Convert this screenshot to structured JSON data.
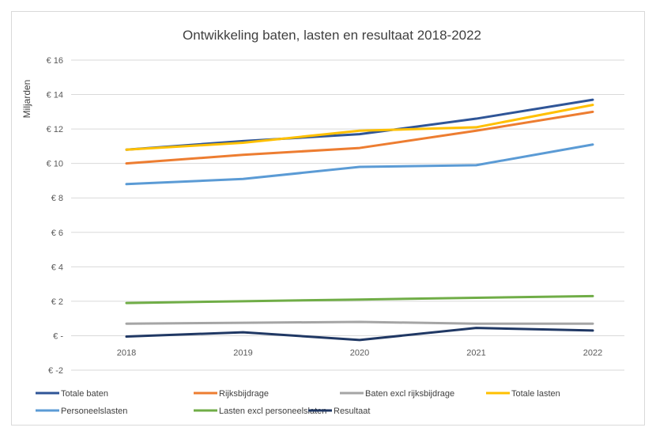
{
  "chart_data": {
    "type": "line",
    "title": "Ontwikkeling baten, lasten en resultaat 2018-2022",
    "xlabel": "",
    "ylabel": "Miljarden",
    "ylim": [
      -2,
      16
    ],
    "yticks": [
      -2,
      0,
      2,
      4,
      6,
      8,
      10,
      12,
      14,
      16
    ],
    "ytick_labels": [
      "€ -2",
      "€ -",
      "€ 2",
      "€ 4",
      "€ 6",
      "€ 8",
      "€ 10",
      "€ 12",
      "€ 14",
      "€ 16"
    ],
    "grid": true,
    "legend_position": "bottom",
    "categories": [
      "2018",
      "2019",
      "2020",
      "2021",
      "2022"
    ],
    "series": [
      {
        "name": "Totale baten",
        "color": "#2f5597",
        "values": [
          10.8,
          11.3,
          11.7,
          12.6,
          13.7
        ]
      },
      {
        "name": "Rijksbijdrage",
        "color": "#ed7d31",
        "values": [
          10.0,
          10.5,
          10.9,
          11.9,
          13.0
        ]
      },
      {
        "name": "Baten excl rijksbijdrage",
        "color": "#a5a5a5",
        "values": [
          0.7,
          0.75,
          0.8,
          0.7,
          0.7
        ]
      },
      {
        "name": "Totale lasten",
        "color": "#ffc000",
        "values": [
          10.8,
          11.2,
          11.9,
          12.1,
          13.4
        ]
      },
      {
        "name": "Personeelslasten",
        "color": "#5b9bd5",
        "values": [
          8.8,
          9.1,
          9.8,
          9.9,
          11.1
        ]
      },
      {
        "name": "Lasten excl personeelslaten",
        "color": "#70ad47",
        "values": [
          1.9,
          2.0,
          2.1,
          2.2,
          2.3
        ]
      },
      {
        "name": "Resultaat",
        "color": "#203864",
        "values": [
          -0.05,
          0.2,
          -0.25,
          0.45,
          0.3
        ]
      }
    ]
  }
}
